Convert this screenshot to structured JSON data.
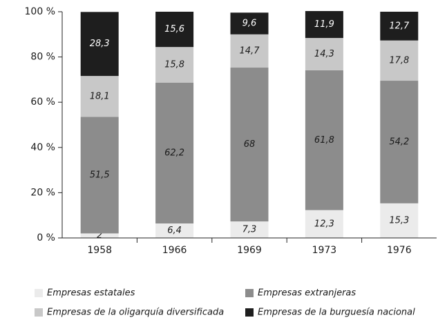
{
  "chart_data": {
    "type": "stacked_bar",
    "categories": [
      "1958",
      "1966",
      "1969",
      "1973",
      "1976"
    ],
    "series": [
      {
        "name": "Empresas estatales",
        "color": "#ebebeb",
        "values": [
          2,
          6.4,
          7.3,
          12.3,
          15.3
        ],
        "value_labels": [
          "2",
          "6,4",
          "7,3",
          "12,3",
          "15,3"
        ]
      },
      {
        "name": "Empresas extranjeras",
        "color": "#8c8c8c",
        "values": [
          51.5,
          62.2,
          68,
          61.8,
          54.2
        ],
        "value_labels": [
          "51,5",
          "62,2",
          "68",
          "61,8",
          "54,2"
        ]
      },
      {
        "name": "Empresas de la oligarquía diversificada",
        "color": "#c8c8c8",
        "values": [
          18.1,
          15.8,
          14.7,
          14.3,
          17.8
        ],
        "value_labels": [
          "18,1",
          "15,8",
          "14,7",
          "14,3",
          "17,8"
        ]
      },
      {
        "name": "Empresas de la burguesía nacional",
        "color": "#1e1e1e",
        "values": [
          28.3,
          15.6,
          9.6,
          11.9,
          12.7
        ],
        "value_labels": [
          "28,3",
          "15,6",
          "9,6",
          "11,9",
          "12,7"
        ]
      }
    ],
    "ylim": [
      0,
      100
    ],
    "yticks": [
      {
        "value": 0,
        "label": "0 %"
      },
      {
        "value": 20,
        "label": "20 %"
      },
      {
        "value": 40,
        "label": "40 %"
      },
      {
        "value": 60,
        "label": "60 %"
      },
      {
        "value": 80,
        "label": "80 %"
      },
      {
        "value": 100,
        "label": "100 %"
      }
    ]
  }
}
